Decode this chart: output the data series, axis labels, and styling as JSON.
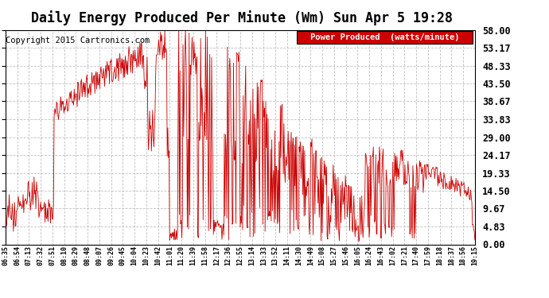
{
  "title": "Daily Energy Produced Per Minute (Wm) Sun Apr 5 19:28",
  "copyright": "Copyright 2015 Cartronics.com",
  "legend_label": "Power Produced  (watts/minute)",
  "legend_bg": "#cc0000",
  "legend_fg": "#ffffff",
  "line_color": "#cc0000",
  "background_color": "#ffffff",
  "grid_color": "#c0c0c0",
  "ylim": [
    0,
    58.0
  ],
  "yticks": [
    0.0,
    4.83,
    9.67,
    14.5,
    19.33,
    24.17,
    29.0,
    33.83,
    38.67,
    43.5,
    48.33,
    53.17,
    58.0
  ],
  "xtick_labels": [
    "06:35",
    "06:54",
    "07:13",
    "07:32",
    "07:51",
    "08:10",
    "08:29",
    "08:48",
    "09:07",
    "09:26",
    "09:45",
    "10:04",
    "10:23",
    "10:42",
    "11:01",
    "11:20",
    "11:39",
    "11:58",
    "12:17",
    "12:36",
    "12:55",
    "13:14",
    "13:33",
    "13:52",
    "14:11",
    "14:30",
    "14:49",
    "15:08",
    "15:27",
    "15:46",
    "16:05",
    "16:24",
    "16:43",
    "17:02",
    "17:21",
    "17:40",
    "17:59",
    "18:18",
    "18:37",
    "18:56",
    "19:15"
  ],
  "title_fontsize": 12,
  "ylabel_fontsize": 9,
  "xlabel_fontsize": 6.5,
  "copyright_fontsize": 7.5,
  "legend_fontsize": 7.5
}
